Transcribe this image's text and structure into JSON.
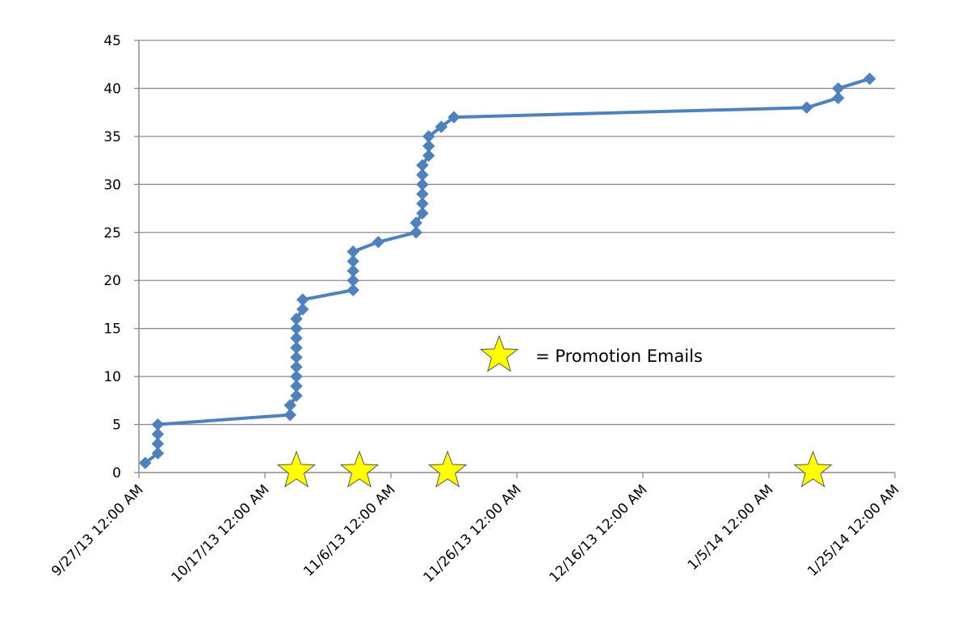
{
  "chart_data": {
    "type": "line",
    "title": "",
    "xlabel": "",
    "ylabel": "",
    "x_axis_type": "date",
    "xlim": [
      "2013-09-27",
      "2014-01-25"
    ],
    "ylim": [
      0,
      45
    ],
    "y_ticks": [
      0,
      5,
      10,
      15,
      20,
      25,
      30,
      35,
      40,
      45
    ],
    "x_tick_labels": [
      "9/27/13 12:00 AM",
      "10/17/13 12:00 AM",
      "11/6/13 12:00 AM",
      "11/26/13 12:00 AM",
      "12/16/13 12:00 AM",
      "1/5/14 12:00 AM",
      "1/25/14 12:00 AM"
    ],
    "grid": "horizontal",
    "series_color": "#4F81BD",
    "marker": "diamond",
    "series": [
      {
        "x": [
          "2013-09-28",
          "2013-09-30",
          "2013-09-30",
          "2013-09-30",
          "2013-09-30",
          "2013-10-21",
          "2013-10-21",
          "2013-10-22",
          "2013-10-22",
          "2013-10-22",
          "2013-10-22",
          "2013-10-22",
          "2013-10-22",
          "2013-10-22",
          "2013-10-22",
          "2013-10-22",
          "2013-10-23",
          "2013-10-23",
          "2013-10-23",
          "2013-10-31",
          "2013-10-31",
          "2013-10-31",
          "2013-10-31",
          "2013-10-31",
          "2013-11-04",
          "2013-11-10",
          "2013-11-10",
          "2013-11-11",
          "2013-11-11",
          "2013-11-11",
          "2013-11-11",
          "2013-11-11",
          "2013-11-11",
          "2013-11-12",
          "2013-11-12",
          "2013-11-12",
          "2013-11-14",
          "2013-11-16",
          "2014-01-11",
          "2014-01-16",
          "2014-01-16",
          "2014-01-21"
        ],
        "values": [
          1,
          2,
          3,
          4,
          5,
          6,
          7,
          8,
          9,
          10,
          11,
          12,
          13,
          14,
          15,
          16,
          17,
          18,
          18,
          19,
          20,
          21,
          22,
          23,
          24,
          25,
          26,
          27,
          28,
          29,
          30,
          31,
          32,
          33,
          34,
          35,
          36,
          37,
          38,
          39,
          40,
          41
        ]
      }
    ],
    "markers_on_axis": [
      "2013-10-22",
      "2013-11-01",
      "2013-11-15",
      "2014-01-12"
    ]
  },
  "legend": {
    "star_label": "= Promotion Emails",
    "star_color": "#FFFF00",
    "star_stroke": "#555555"
  }
}
